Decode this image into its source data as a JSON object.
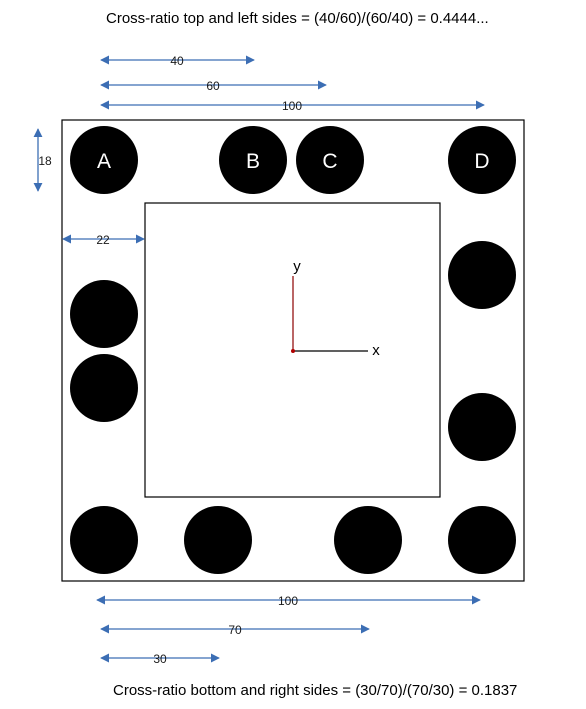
{
  "captions": {
    "top": "Cross-ratio top and left sides = (40/60)/(60/40) = 0.4444...",
    "bottom": "Cross-ratio bottom and right sides = (30/70)/(70/30) = 0.1837"
  },
  "dimensions": {
    "top_40": "40",
    "top_60": "60",
    "top_100": "100",
    "left_18": "18",
    "left_22": "22",
    "bottom_100": "100",
    "bottom_70": "70",
    "bottom_30": "30"
  },
  "dots": {
    "a": "A",
    "b": "B",
    "c": "C",
    "d": "D"
  },
  "axes": {
    "x": "x",
    "y": "y"
  },
  "colors": {
    "dot": "#000000",
    "arrow": "#3c6eb4",
    "y_axis": "#8b0000",
    "x_axis": "#000000"
  }
}
